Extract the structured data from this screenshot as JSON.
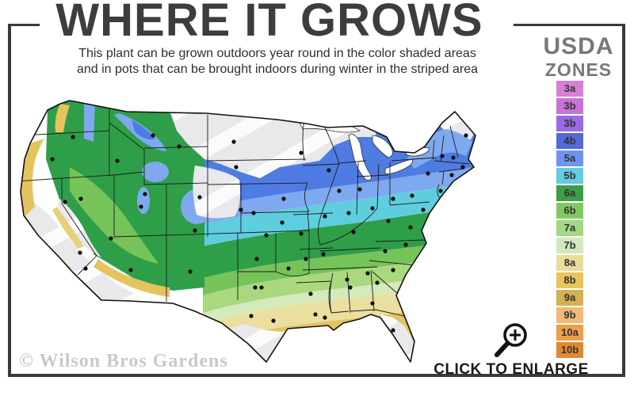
{
  "header": {
    "title": "WHERE IT GROWS",
    "subtitle_line1": "This plant can be grown outdoors year round in the color shaded areas",
    "subtitle_line2": "and in pots that can be brought indoors during winter in the striped area"
  },
  "legend": {
    "title_line1": "USDA",
    "title_line2": "ZONES",
    "zones": [
      {
        "label": "3a",
        "color": "#d77fd4"
      },
      {
        "label": "3b",
        "color": "#c873d8"
      },
      {
        "label": "3b",
        "color": "#9a6ae8"
      },
      {
        "label": "4b",
        "color": "#5468d8"
      },
      {
        "label": "5a",
        "color": "#6f94ee"
      },
      {
        "label": "5b",
        "color": "#64cbe0"
      },
      {
        "label": "6a",
        "color": "#3d9e47"
      },
      {
        "label": "6b",
        "color": "#82c860"
      },
      {
        "label": "7a",
        "color": "#a2d784"
      },
      {
        "label": "7b",
        "color": "#d1e9c0"
      },
      {
        "label": "8a",
        "color": "#e8dd9a"
      },
      {
        "label": "8b",
        "color": "#e7c558"
      },
      {
        "label": "9a",
        "color": "#d4b152"
      },
      {
        "label": "9b",
        "color": "#f4b877"
      },
      {
        "label": "10a",
        "color": "#ee9f4a"
      },
      {
        "label": "10b",
        "color": "#e08b33"
      }
    ]
  },
  "map": {
    "colors": {
      "out_of_range_striped": "#e9e9ec",
      "stripe_overlay": "#ffffff",
      "zone_blue": "#4f7ce2",
      "zone_light_blue": "#7fa9ee",
      "zone_cyan": "#5ecede",
      "zone_green": "#2f9e49",
      "zone_medium_green": "#76c35a",
      "zone_light_green": "#a9d87f",
      "zone_pale_green": "#d4eaba",
      "zone_pale_yellow": "#ebdf9f",
      "zone_gold": "#e4c45f",
      "zone_tan": "#d9a74e",
      "border_line": "#1c1c1c"
    }
  },
  "footer": {
    "enlarge_label": "CLICK TO ENLARGE",
    "watermark": "© Wilson Bros Gardens"
  },
  "icons": {
    "enlarge_icon": "magnifier-plus"
  }
}
